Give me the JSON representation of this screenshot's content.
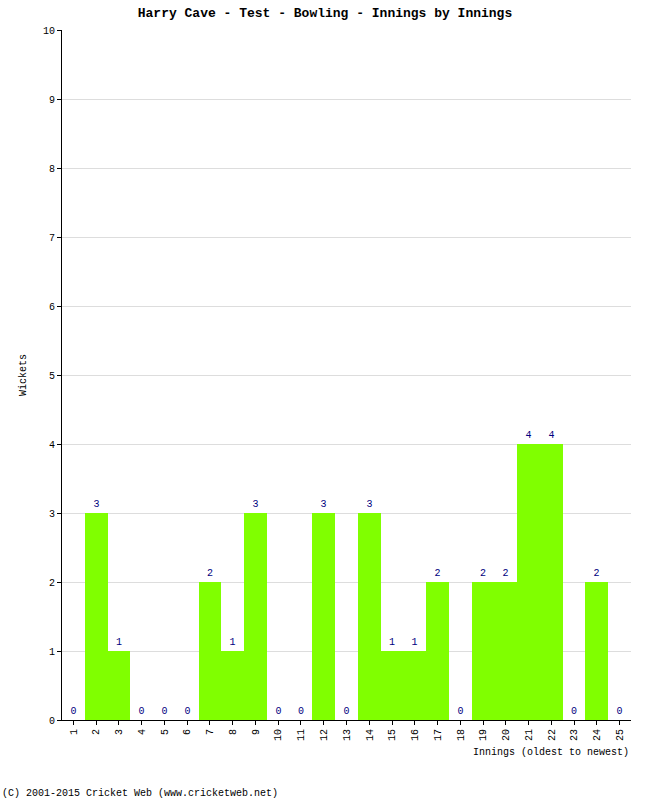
{
  "chart_data": {
    "type": "bar",
    "title": "Harry Cave - Test - Bowling - Innings by Innings",
    "xlabel": "Innings (oldest to newest)",
    "ylabel": "Wickets",
    "categories": [
      "1",
      "2",
      "3",
      "4",
      "5",
      "6",
      "7",
      "8",
      "9",
      "10",
      "11",
      "12",
      "13",
      "14",
      "15",
      "16",
      "17",
      "18",
      "19",
      "20",
      "21",
      "22",
      "23",
      "24",
      "25"
    ],
    "values": [
      0,
      3,
      1,
      0,
      0,
      0,
      2,
      1,
      3,
      0,
      0,
      3,
      0,
      3,
      1,
      1,
      2,
      0,
      2,
      2,
      4,
      4,
      0,
      2,
      0
    ],
    "color": "#80ff00",
    "ylim": [
      0,
      10
    ],
    "yticks": [
      0,
      1,
      2,
      3,
      4,
      5,
      6,
      7,
      8,
      9,
      10
    ],
    "grid": true,
    "data_labels": true,
    "annotations": [
      "(C) 2001-2015 Cricket Web (www.cricketweb.net)"
    ]
  }
}
